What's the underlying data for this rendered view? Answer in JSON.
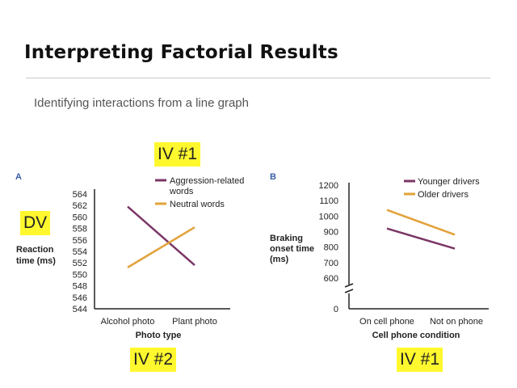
{
  "slide": {
    "title": "Interpreting Factorial Results",
    "subtitle": "Identifying interactions from a line graph"
  },
  "annotations": {
    "iv1_top": "IV #1",
    "dv": "DV",
    "iv2": "IV #2",
    "iv1_bottom": "IV #1"
  },
  "colors": {
    "purple": "#7b3666",
    "orange": "#e2a23a",
    "highlight": "#fff82e"
  },
  "chart_data": [
    {
      "panel": "A",
      "type": "line",
      "categories": [
        "Alcohol photo",
        "Plant photo"
      ],
      "series": [
        {
          "name": "Aggression-related words",
          "values": [
            561.8,
            551.6
          ],
          "color": "#7b3666"
        },
        {
          "name": "Neutral words",
          "values": [
            551.2,
            558.2
          ],
          "color": "#e2a23a"
        }
      ],
      "xlabel": "Photo type",
      "ylabel": [
        "Reaction",
        "time (ms)"
      ],
      "ylim": [
        544,
        564
      ],
      "yticks": [
        "564",
        "562",
        "560",
        "558",
        "556",
        "554",
        "552",
        "550",
        "548",
        "546",
        "544"
      ],
      "legend": [
        "Aggression-related",
        "words",
        "Neutral words"
      ]
    },
    {
      "panel": "B",
      "type": "line",
      "categories": [
        "On cell phone",
        "Not on phone"
      ],
      "series": [
        {
          "name": "Younger drivers",
          "values": [
            920,
            790
          ],
          "color": "#7b3666"
        },
        {
          "name": "Older drivers",
          "values": [
            1040,
            880
          ],
          "color": "#e2a23a"
        }
      ],
      "xlabel": "Cell phone condition",
      "ylabel": [
        "Braking",
        "onset time",
        "(ms)"
      ],
      "ylim": [
        0,
        1200
      ],
      "axis_break": true,
      "yticks": [
        "1200",
        "1100",
        "1000",
        "900",
        "800",
        "700",
        "600",
        "0"
      ],
      "legend": [
        "Younger drivers",
        "Older drivers"
      ]
    }
  ]
}
